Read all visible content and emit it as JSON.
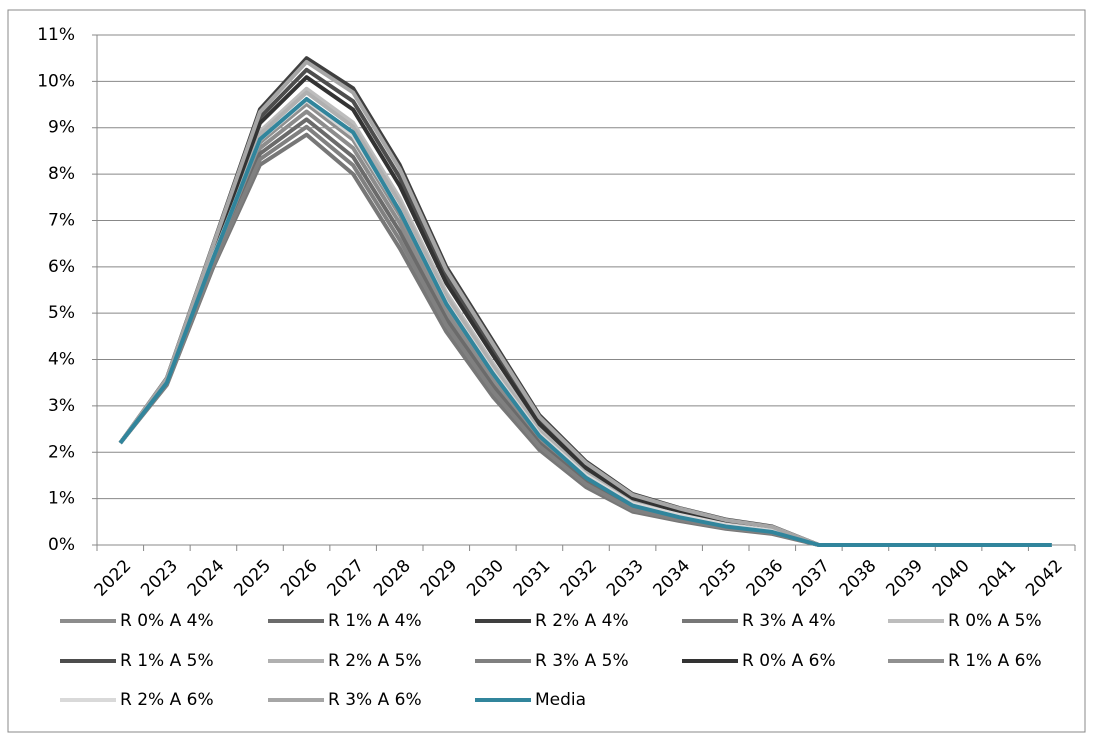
{
  "chart_data": {
    "type": "line",
    "categories": [
      "2022",
      "2023",
      "2024",
      "2025",
      "2026",
      "2027",
      "2028",
      "2029",
      "2030",
      "2031",
      "2032",
      "2033",
      "2034",
      "2035",
      "2036",
      "2037",
      "2038",
      "2039",
      "2040",
      "2041",
      "2042"
    ],
    "ylim": [
      0,
      11
    ],
    "yticks": [
      {
        "value": 0,
        "label": "0%"
      },
      {
        "value": 1,
        "label": "1%"
      },
      {
        "value": 2,
        "label": "2%"
      },
      {
        "value": 3,
        "label": "3%"
      },
      {
        "value": 4,
        "label": "4%"
      },
      {
        "value": 5,
        "label": "5%"
      },
      {
        "value": 6,
        "label": "6%"
      },
      {
        "value": 7,
        "label": "7%"
      },
      {
        "value": 8,
        "label": "8%"
      },
      {
        "value": 9,
        "label": "9%"
      },
      {
        "value": 10,
        "label": "10%"
      },
      {
        "value": 11,
        "label": "11%"
      }
    ],
    "grid": true,
    "legend": "bottom",
    "series": [
      {
        "name": "R 0% A 4%",
        "color": "#8c8c8c",
        "values": [
          2.2,
          3.5,
          6.15,
          8.56,
          9.35,
          8.56,
          6.94,
          5.02,
          3.56,
          2.28,
          1.42,
          0.83,
          0.6,
          0.41,
          0.29,
          0,
          0,
          0,
          0,
          0,
          0
        ]
      },
      {
        "name": "R 1% A 4%",
        "color": "#6b6b6b",
        "values": [
          2.2,
          3.48,
          6.1,
          8.44,
          9.18,
          8.37,
          6.76,
          4.88,
          3.44,
          2.2,
          1.36,
          0.8,
          0.58,
          0.39,
          0.27,
          0,
          0,
          0,
          0,
          0,
          0
        ]
      },
      {
        "name": "R 2% A 4%",
        "color": "#3f3f3f",
        "values": [
          2.2,
          3.6,
          6.5,
          9.4,
          10.5,
          9.85,
          8.2,
          6.0,
          4.4,
          2.8,
          1.8,
          1.1,
          0.8,
          0.55,
          0.4,
          0,
          0,
          0,
          0,
          0,
          0
        ]
      },
      {
        "name": "R 3% A 4%",
        "color": "#777777",
        "values": [
          2.2,
          3.45,
          6.0,
          8.2,
          8.85,
          8.0,
          6.4,
          4.6,
          3.2,
          2.05,
          1.25,
          0.72,
          0.52,
          0.35,
          0.24,
          0,
          0,
          0,
          0,
          0,
          0
        ]
      },
      {
        "name": "R 0% A 5%",
        "color": "#bdbdbd",
        "values": [
          2.2,
          3.54,
          6.3,
          8.92,
          9.84,
          9.11,
          7.48,
          5.44,
          3.92,
          2.5,
          1.58,
          0.95,
          0.69,
          0.47,
          0.34,
          0,
          0,
          0,
          0,
          0,
          0
        ]
      },
      {
        "name": "R 1% A 5%",
        "color": "#4d4d4d",
        "values": [
          2.2,
          3.58,
          6.43,
          9.22,
          10.25,
          9.57,
          7.93,
          5.79,
          4.22,
          2.69,
          1.72,
          1.04,
          0.76,
          0.52,
          0.38,
          0,
          0,
          0,
          0,
          0,
          0
        ]
      },
      {
        "name": "R 2% A 5%",
        "color": "#b0b0b0",
        "values": [
          2.2,
          3.53,
          6.28,
          8.86,
          9.76,
          9.02,
          7.39,
          5.37,
          3.86,
          2.46,
          1.55,
          0.93,
          0.67,
          0.46,
          0.33,
          0,
          0,
          0,
          0,
          0,
          0
        ]
      },
      {
        "name": "R 3% A 5%",
        "color": "#808080",
        "values": [
          2.2,
          3.47,
          6.05,
          8.32,
          9.02,
          8.19,
          6.58,
          4.74,
          3.32,
          2.13,
          1.31,
          0.76,
          0.55,
          0.37,
          0.26,
          0,
          0,
          0,
          0,
          0,
          0
        ]
      },
      {
        "name": "R 0% A 6%",
        "color": "#333333",
        "values": [
          2.2,
          3.56,
          6.38,
          9.1,
          10.09,
          9.39,
          7.75,
          5.65,
          4.1,
          2.61,
          1.66,
          1.01,
          0.73,
          0.5,
          0.36,
          0,
          0,
          0,
          0,
          0,
          0
        ]
      },
      {
        "name": "R 1% A 6%",
        "color": "#909090",
        "values": [
          2.2,
          3.51,
          6.2,
          8.68,
          9.51,
          8.74,
          7.12,
          5.16,
          3.68,
          2.35,
          1.47,
          0.87,
          0.63,
          0.43,
          0.3,
          0,
          0,
          0,
          0,
          0,
          0
        ]
      },
      {
        "name": "R 2% A 6%",
        "color": "#d9d9d9",
        "values": [
          2.2,
          3.52,
          6.23,
          8.74,
          9.59,
          8.83,
          7.21,
          5.23,
          3.74,
          2.39,
          1.5,
          0.89,
          0.65,
          0.44,
          0.31,
          0,
          0,
          0,
          0,
          0,
          0
        ]
      },
      {
        "name": "R 3% A 6%",
        "color": "#a6a6a6",
        "values": [
          2.2,
          3.59,
          6.48,
          9.34,
          10.42,
          9.76,
          8.11,
          5.93,
          4.34,
          2.76,
          1.77,
          1.08,
          0.79,
          0.54,
          0.39,
          0,
          0,
          0,
          0,
          0,
          0
        ]
      },
      {
        "name": "Media",
        "color": "#31859c",
        "values": [
          2.2,
          3.5,
          6.2,
          8.75,
          9.62,
          8.9,
          7.2,
          5.2,
          3.7,
          2.35,
          1.45,
          0.85,
          0.6,
          0.4,
          0.28,
          0,
          0,
          0,
          0,
          0,
          0
        ]
      }
    ]
  }
}
